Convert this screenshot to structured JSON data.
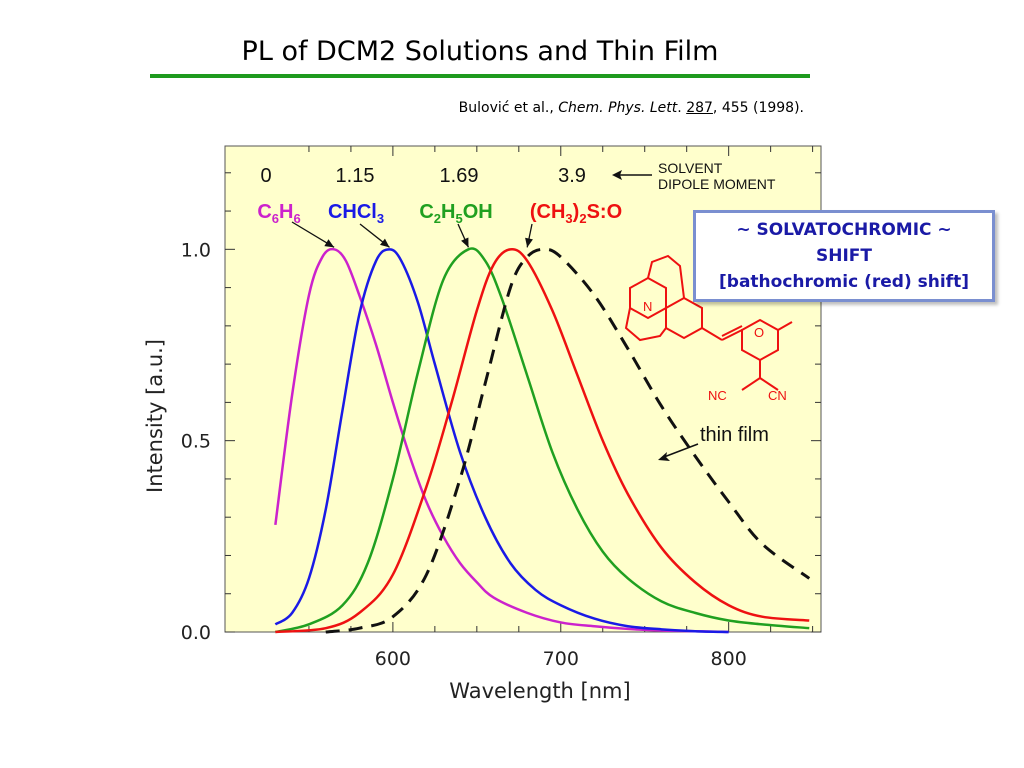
{
  "slide": {
    "title": "PL of DCM2 Solutions and Thin Film",
    "citation": {
      "authors": "Bulović et al.,",
      "journal": "Chem. Phys. Lett",
      "volume": "287",
      "rest": ", 455 (1998)."
    }
  },
  "callout": {
    "line1": "~ SOLVATOCHROMIC ~",
    "line2": "SHIFT",
    "line3": "[bathochromic (red) shift]"
  },
  "colors": {
    "title_rule": "#1e9a1e",
    "plot_bg": "#ffffcc",
    "c6h6": "#cc22cc",
    "chcl3": "#1a1ae6",
    "c2h5oh": "#20a020",
    "dmso": "#ee1111",
    "thin_film": "#111111",
    "callout_text": "#1a1aa6",
    "molecule": "#ee1111"
  },
  "chart_data": {
    "type": "line",
    "title": "",
    "xlabel": "Wavelength [nm]",
    "ylabel": "Intensity [a.u.]",
    "xlim": [
      500,
      855
    ],
    "ylim": [
      0,
      1.27
    ],
    "x_ticks": [
      600,
      700,
      800
    ],
    "y_ticks": [
      0.0,
      0.5,
      1.0
    ],
    "x_tick_labels": [
      "600",
      "700",
      "800"
    ],
    "y_tick_labels": [
      "0.0",
      "0.5",
      "1.0"
    ],
    "grid": false,
    "legend": "labels above curves",
    "dipole_header_line1": "SOLVENT",
    "dipole_header_line2": "DIPOLE MOMENT",
    "annotation_thin_film": "thin film",
    "series": [
      {
        "name": "C6H6",
        "label_parts": [
          [
            "C",
            ""
          ],
          [
            "6",
            "sub"
          ],
          [
            "H",
            ""
          ],
          [
            "6",
            "sub"
          ]
        ],
        "dipole": "0",
        "color_key": "c6h6",
        "dashed": false,
        "x": [
          530,
          540,
          550,
          558,
          565,
          572,
          580,
          590,
          600,
          610,
          620,
          630,
          640,
          650,
          660,
          680,
          700,
          720,
          740,
          760,
          780,
          800
        ],
        "y": [
          0.28,
          0.62,
          0.88,
          0.98,
          1.0,
          0.97,
          0.88,
          0.75,
          0.6,
          0.46,
          0.34,
          0.25,
          0.18,
          0.13,
          0.09,
          0.05,
          0.025,
          0.015,
          0.008,
          0.004,
          0.002,
          0.0
        ]
      },
      {
        "name": "CHCl3",
        "label_parts": [
          [
            "CHCl",
            ""
          ],
          [
            "3",
            "sub"
          ]
        ],
        "dipole": "1.15",
        "color_key": "chcl3",
        "dashed": false,
        "x": [
          530,
          540,
          550,
          560,
          570,
          580,
          590,
          598,
          605,
          615,
          625,
          640,
          655,
          670,
          685,
          700,
          720,
          740,
          760,
          780,
          800
        ],
        "y": [
          0.02,
          0.05,
          0.14,
          0.32,
          0.58,
          0.83,
          0.97,
          1.0,
          0.97,
          0.86,
          0.7,
          0.47,
          0.3,
          0.18,
          0.11,
          0.07,
          0.035,
          0.015,
          0.007,
          0.002,
          0.0
        ]
      },
      {
        "name": "C2H5OH",
        "label_parts": [
          [
            "C",
            ""
          ],
          [
            "2",
            "sub"
          ],
          [
            "H",
            ""
          ],
          [
            "5",
            "sub"
          ],
          [
            "OH",
            ""
          ]
        ],
        "dipole": "1.69",
        "color_key": "c2h5oh",
        "dashed": false,
        "x": [
          530,
          550,
          570,
          585,
          600,
          615,
          630,
          645,
          655,
          665,
          680,
          695,
          710,
          725,
          740,
          760,
          780,
          800,
          820,
          848
        ],
        "y": [
          0.0,
          0.02,
          0.07,
          0.18,
          0.4,
          0.68,
          0.92,
          1.0,
          0.97,
          0.87,
          0.67,
          0.47,
          0.32,
          0.21,
          0.14,
          0.08,
          0.05,
          0.03,
          0.02,
          0.01
        ]
      },
      {
        "name": "(CH3)2S:O",
        "label_parts": [
          [
            "(CH",
            ""
          ],
          [
            "3",
            "sub"
          ],
          [
            ")",
            ""
          ],
          [
            "2",
            "sub"
          ],
          [
            "S:O",
            ""
          ]
        ],
        "dipole": "3.9",
        "color_key": "dmso",
        "dashed": false,
        "x": [
          530,
          560,
          580,
          600,
          620,
          635,
          650,
          660,
          670,
          680,
          695,
          710,
          725,
          740,
          760,
          780,
          800,
          820,
          848
        ],
        "y": [
          0.0,
          0.01,
          0.05,
          0.15,
          0.38,
          0.6,
          0.84,
          0.96,
          1.0,
          0.97,
          0.84,
          0.67,
          0.5,
          0.36,
          0.22,
          0.13,
          0.07,
          0.04,
          0.03
        ]
      },
      {
        "name": "thin film",
        "label_parts": [],
        "dipole": "",
        "color_key": "thin_film",
        "dashed": true,
        "x": [
          560,
          580,
          600,
          620,
          640,
          655,
          670,
          680,
          690,
          700,
          720,
          740,
          760,
          780,
          800,
          820,
          848
        ],
        "y": [
          0.0,
          0.01,
          0.04,
          0.15,
          0.4,
          0.65,
          0.9,
          0.98,
          1.0,
          0.98,
          0.88,
          0.74,
          0.59,
          0.46,
          0.34,
          0.23,
          0.14
        ]
      }
    ]
  }
}
